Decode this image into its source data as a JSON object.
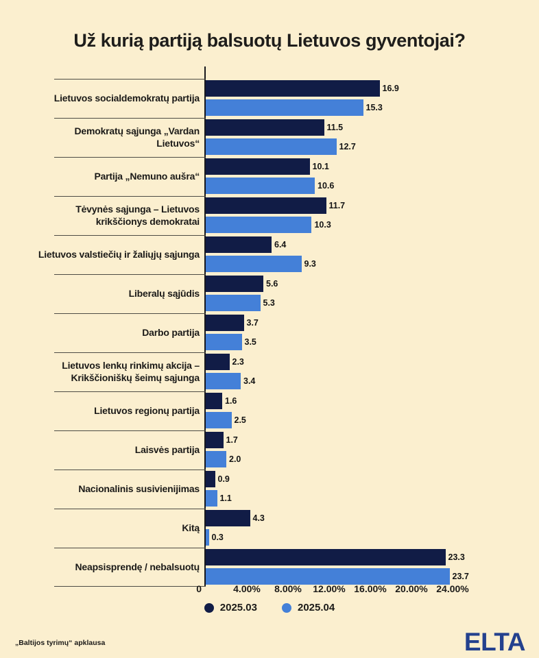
{
  "chart_data": {
    "type": "bar",
    "orientation": "horizontal",
    "title": "Už kurią partiją balsuotų Lietuvos gyventojai?",
    "categories": [
      "Lietuvos socialdemokratų partija",
      "Demokratų sąjunga „Vardan Lietuvos“",
      "Partija „Nemuno aušra“",
      "Tėvynės sąjunga – Lietuvos krikščionys demokratai",
      "Lietuvos valstiečių ir žaliųjų sąjunga",
      "Liberalų sąjūdis",
      "Darbo partija",
      "Lietuvos lenkų rinkimų akcija – Krikščioniškų šeimų sąjunga",
      "Lietuvos regionų partija",
      "Laisvės partija",
      "Nacionalinis susivienijimas",
      "Kitą",
      "Neapsisprendę / nebalsuotų"
    ],
    "series": [
      {
        "name": "2025.03",
        "color": "#111c46",
        "values": [
          16.9,
          11.5,
          10.1,
          11.7,
          6.4,
          5.6,
          3.7,
          2.3,
          1.6,
          1.7,
          0.9,
          4.3,
          23.3
        ]
      },
      {
        "name": "2025.04",
        "color": "#4480d8",
        "values": [
          15.3,
          12.7,
          10.6,
          10.3,
          9.3,
          5.3,
          3.5,
          3.4,
          2.5,
          2.0,
          1.1,
          0.3,
          23.7
        ]
      }
    ],
    "xlim": [
      0,
      26
    ],
    "x_ticks": [
      {
        "value": 0,
        "label": "0"
      },
      {
        "value": 4,
        "label": "4.00%"
      },
      {
        "value": 8,
        "label": "8.00%"
      },
      {
        "value": 12,
        "label": "12.00%"
      },
      {
        "value": 16,
        "label": "16.00%"
      },
      {
        "value": 20,
        "label": "20.00%"
      },
      {
        "value": 24,
        "label": "24.00%"
      }
    ],
    "value_labels_shown": true,
    "legend_position": "bottom",
    "grid": false
  },
  "colors": {
    "background": "#fbefcf",
    "bar_dark": "#111c46",
    "bar_light": "#4480d8",
    "axis": "#17171c",
    "separator": "#4c4b44",
    "logo": "#24418e"
  },
  "footer": {
    "source": "„Baltijos tyrimų“ apklausa",
    "logo_text": "ELTA"
  }
}
